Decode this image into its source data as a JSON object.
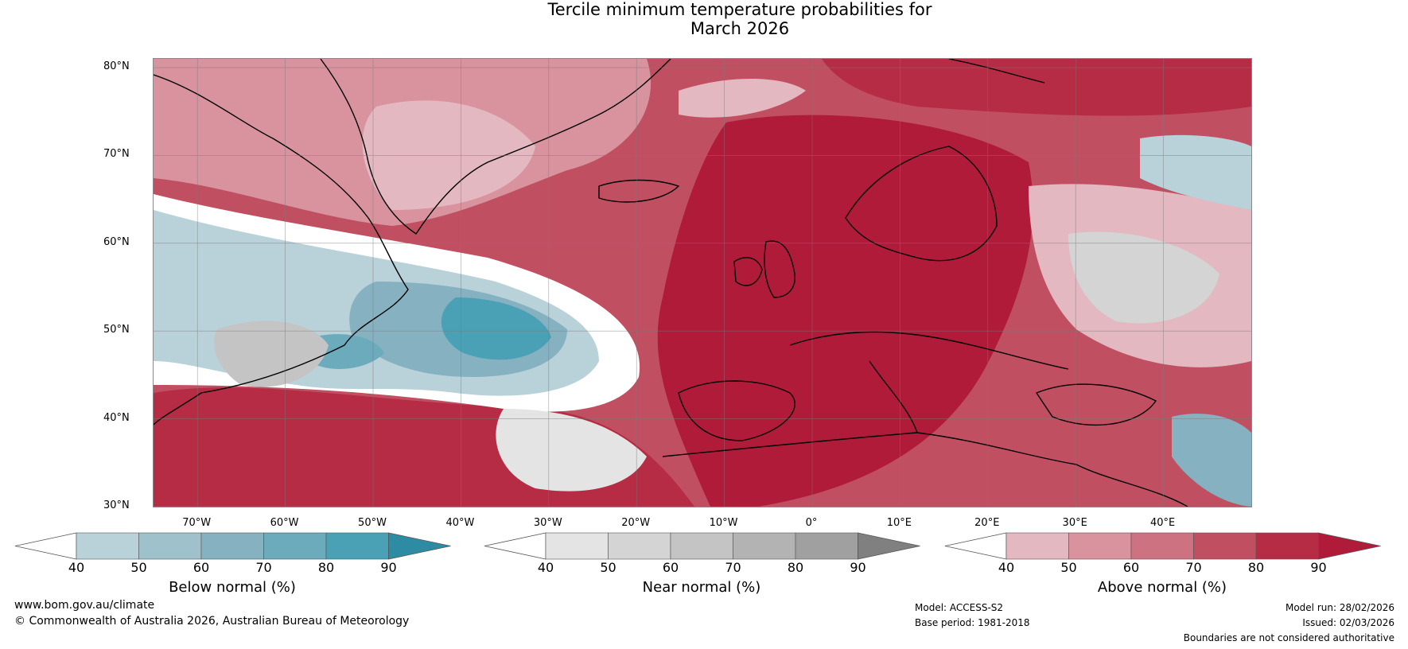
{
  "title": {
    "line1": "Tercile minimum temperature probabilities for",
    "line2": "March 2026"
  },
  "map": {
    "lat_labels": [
      "80°N",
      "70°N",
      "60°N",
      "50°N",
      "40°N",
      "30°N"
    ],
    "lon_labels": [
      "70°W",
      "60°W",
      "50°W",
      "40°W",
      "30°W",
      "20°W",
      "10°W",
      "0°",
      "10°E",
      "20°E",
      "30°E",
      "40°E"
    ],
    "extent": {
      "lon_min": -75,
      "lon_max": 50,
      "lat_min": 30,
      "lat_max": 81
    }
  },
  "legends": [
    {
      "id": "below",
      "title": "Below normal (%)",
      "ticks": [
        "40",
        "50",
        "60",
        "70",
        "80",
        "90"
      ],
      "colors": [
        "#b9d1d9",
        "#9fc1cc",
        "#86b1c0",
        "#6babbb",
        "#4aa0b5",
        "#2d8ca3"
      ]
    },
    {
      "id": "near",
      "title": "Near normal (%)",
      "ticks": [
        "40",
        "50",
        "60",
        "70",
        "80",
        "90"
      ],
      "colors": [
        "#e4e4e4",
        "#d4d4d4",
        "#c4c4c4",
        "#b3b3b3",
        "#a0a0a0",
        "#808080"
      ]
    },
    {
      "id": "above",
      "title": "Above normal (%)",
      "ticks": [
        "40",
        "50",
        "60",
        "70",
        "80",
        "90"
      ],
      "colors": [
        "#e3b8c0",
        "#d8939f",
        "#cc7280",
        "#c05061",
        "#b52c44",
        "#b01b3a"
      ]
    }
  ],
  "footer": {
    "website": "www.bom.gov.au/climate",
    "copyright": "© Commonwealth of Australia 2026, Australian Bureau of Meteorology",
    "model": "Model: ACCESS-S2",
    "base_period": "Base period: 1981-2018",
    "model_run": "Model run: 28/02/2026",
    "issued": "Issued: 02/03/2026",
    "disclaimer": "Boundaries are not considered authoritative"
  }
}
